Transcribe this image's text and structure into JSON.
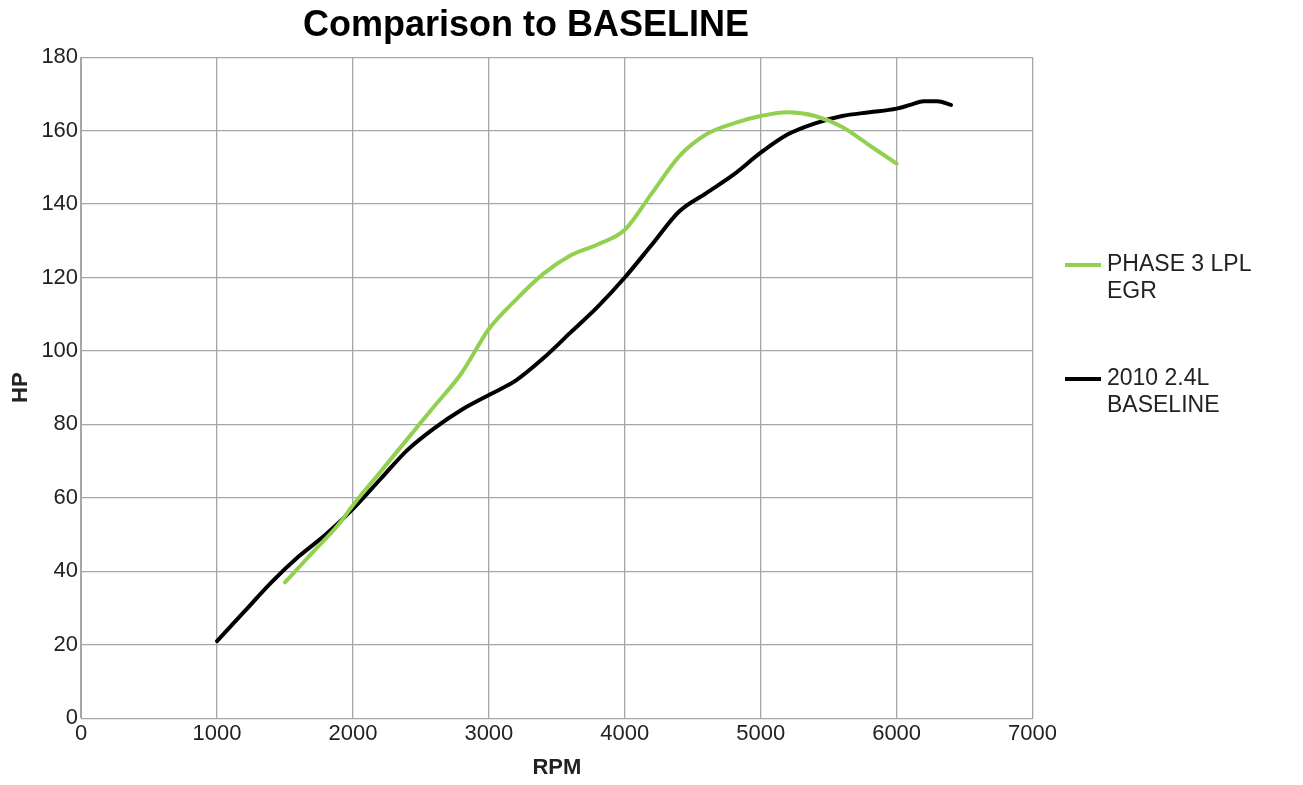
{
  "chart_data": {
    "type": "line",
    "title": "Comparison to BASELINE",
    "xlabel": "RPM",
    "ylabel": "HP",
    "xlim": [
      0,
      7000
    ],
    "xticks": [
      0,
      1000,
      2000,
      3000,
      4000,
      5000,
      6000,
      7000
    ],
    "ylim": [
      0,
      180
    ],
    "yticks": [
      0,
      20,
      40,
      60,
      80,
      100,
      120,
      140,
      160,
      180
    ],
    "grid": true,
    "legend": "right",
    "marker": "none",
    "line_style": "solid",
    "series": [
      {
        "name": "PHASE 3 LPL EGR",
        "color": "#92d050",
        "x": [
          1500,
          1700,
          1900,
          2000,
          2200,
          2400,
          2600,
          2800,
          3000,
          3200,
          3400,
          3600,
          3800,
          4000,
          4200,
          4400,
          4600,
          4800,
          5000,
          5200,
          5400,
          5600,
          5800,
          6000
        ],
        "values": [
          37,
          45,
          53,
          58,
          67,
          76,
          85,
          94,
          106,
          114,
          121,
          126,
          129,
          133,
          143,
          153,
          159,
          162,
          164,
          165,
          164,
          161,
          156,
          151
        ]
      },
      {
        "name": "2010 2.4L BASELINE",
        "color": "#000000",
        "x": [
          1000,
          1200,
          1400,
          1600,
          1800,
          2000,
          2200,
          2400,
          2600,
          2800,
          3000,
          3200,
          3400,
          3600,
          3800,
          4000,
          4200,
          4400,
          4600,
          4800,
          5000,
          5200,
          5400,
          5600,
          5800,
          6000,
          6100,
          6200,
          6300,
          6400
        ],
        "values": [
          21,
          29,
          37,
          44,
          50,
          57,
          65,
          73,
          79,
          84,
          88,
          92,
          98,
          105,
          112,
          120,
          129,
          138,
          143,
          148,
          154,
          159,
          162,
          164,
          165,
          166,
          167,
          168,
          168,
          167
        ]
      }
    ]
  }
}
